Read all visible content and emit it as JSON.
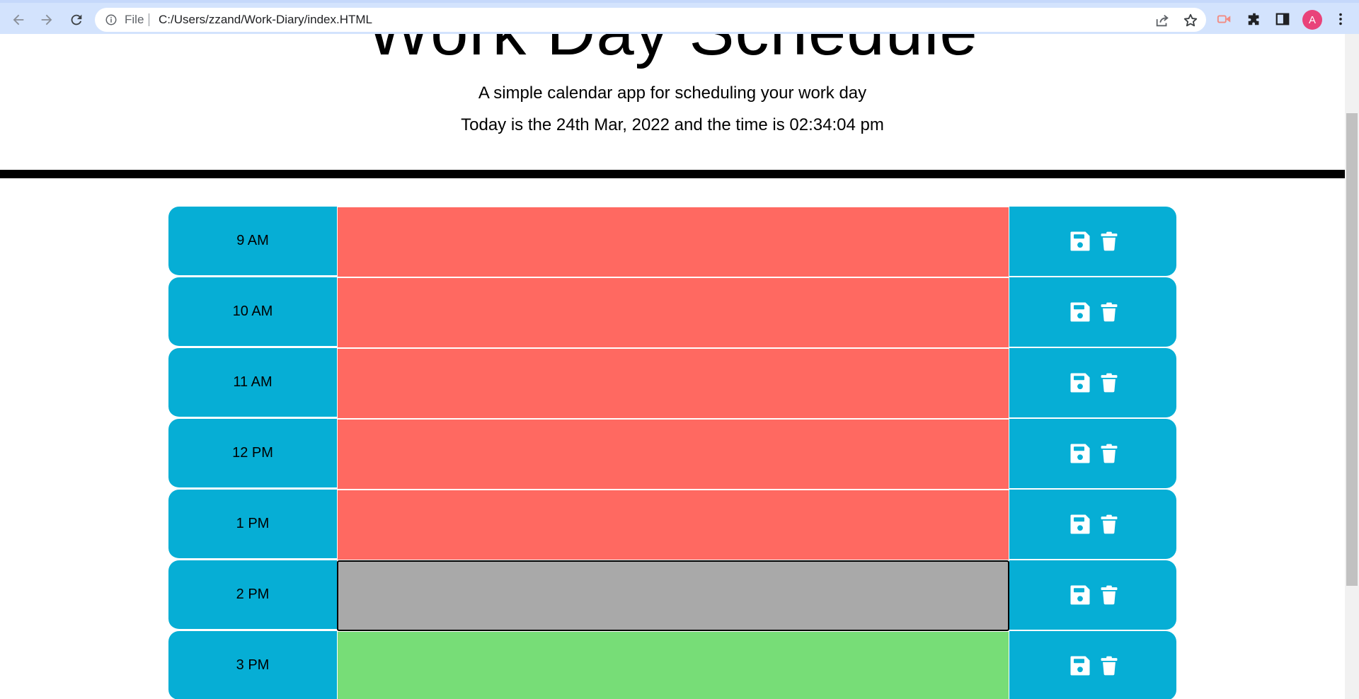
{
  "browser": {
    "file_label": "File",
    "url": "C:/Users/zzand/Work-Diary/index.HTML",
    "avatar_initial": "A"
  },
  "header": {
    "title": "Work Day Schedule",
    "lead": "A simple calendar app for scheduling your work day",
    "current_day": "Today is the 24th Mar, 2022 and the time is 02:34:04 pm"
  },
  "colors": {
    "hour_block": "#06aed5",
    "past": "#ff6961",
    "present": "#a9a9a9",
    "future": "#77dd77"
  },
  "rows": [
    {
      "hour": "9 AM",
      "state": "past",
      "text": ""
    },
    {
      "hour": "10 AM",
      "state": "past",
      "text": ""
    },
    {
      "hour": "11 AM",
      "state": "past",
      "text": ""
    },
    {
      "hour": "12 PM",
      "state": "past",
      "text": ""
    },
    {
      "hour": "1 PM",
      "state": "past",
      "text": ""
    },
    {
      "hour": "2 PM",
      "state": "present",
      "text": ""
    },
    {
      "hour": "3 PM",
      "state": "future",
      "text": ""
    }
  ],
  "icons": {
    "save": "save-icon",
    "delete": "trash-icon"
  }
}
